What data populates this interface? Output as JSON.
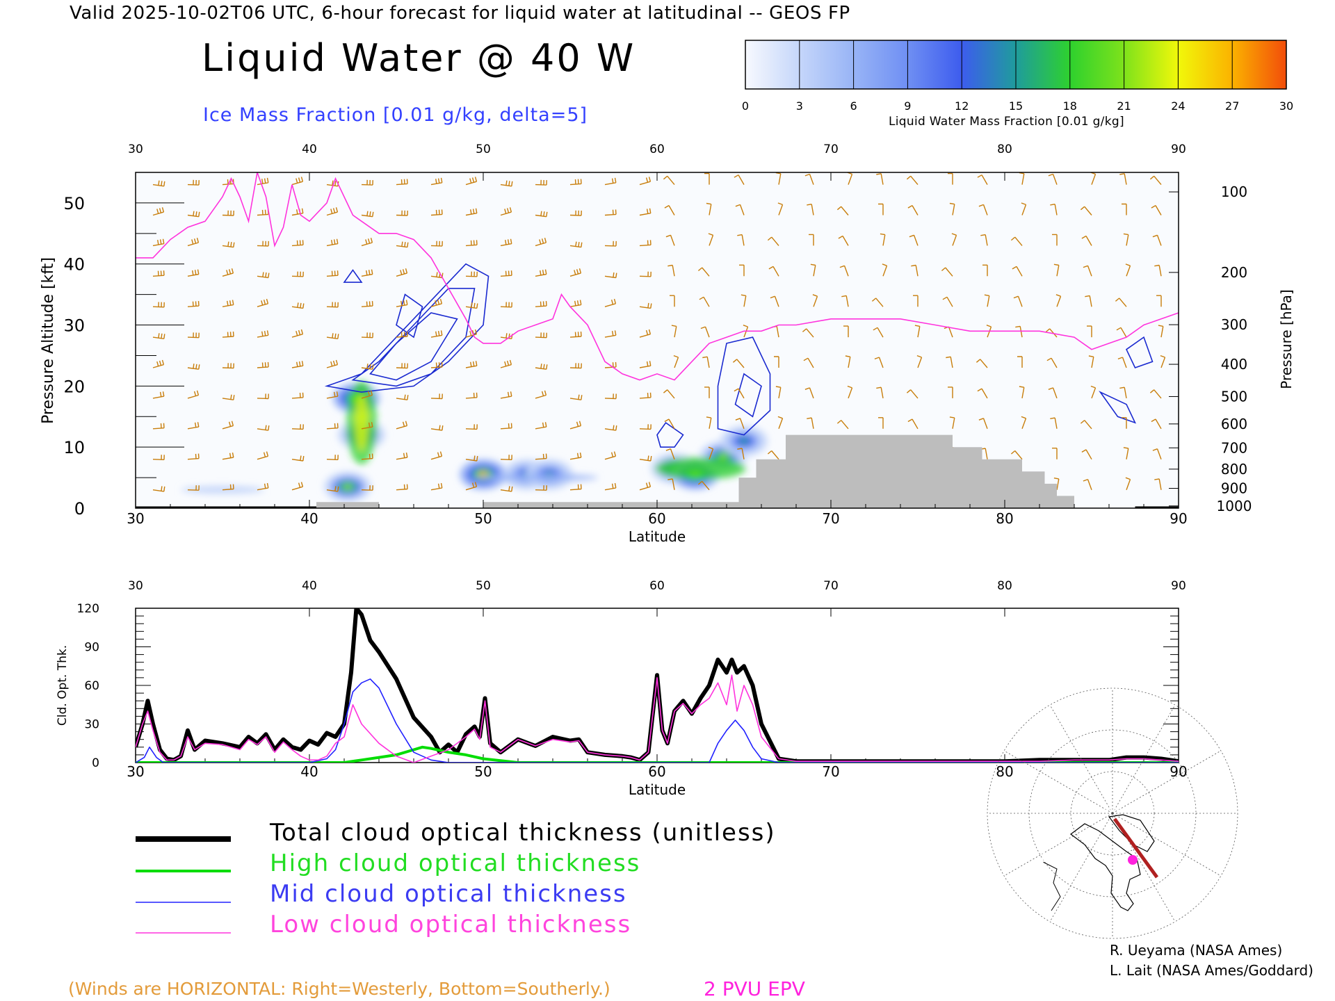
{
  "header": {
    "valid_line": "Valid 2025-10-02T06 UTC, 6-hour forecast for liquid water at latitudinal -- GEOS FP",
    "main_title": "Liquid Water @ 40 W",
    "contour_label": "Ice Mass Fraction [0.01 g/kg, delta=5]"
  },
  "colorbar": {
    "ticks": [
      "0",
      "3",
      "6",
      "9",
      "12",
      "15",
      "18",
      "21",
      "24",
      "27",
      "30"
    ],
    "label": "Liquid Water Mass Fraction [0.01 g/kg]",
    "colors": [
      "#f7f9fe",
      "#c5d6fa",
      "#98b4f6",
      "#6f8ff3",
      "#3d5cee",
      "#1f9c9c",
      "#2ed12e",
      "#7ee21b",
      "#f1f80a",
      "#fbb200",
      "#f24d0a"
    ]
  },
  "top_panel": {
    "ylabel_left": "Pressure Altitude [kft]",
    "ylabel_right": "Pressure [hPa]",
    "xlabel": "Latitude",
    "xticks": [
      "30",
      "40",
      "50",
      "60",
      "70",
      "80",
      "90"
    ],
    "yticks_left": [
      "0",
      "10",
      "20",
      "30",
      "40",
      "50"
    ],
    "yticks_right": [
      "100",
      "200",
      "300",
      "400",
      "500",
      "600",
      "700",
      "800",
      "900",
      "1000"
    ]
  },
  "bottom_panel": {
    "ylabel": "Cld. Opt. Thk.",
    "xlabel": "Latitude",
    "xticks": [
      "30",
      "40",
      "50",
      "60",
      "70",
      "80",
      "90"
    ],
    "yticks": [
      "0",
      "30",
      "60",
      "90",
      "120"
    ]
  },
  "legend": {
    "total": "Total cloud optical thickness (unitless)",
    "high": "High cloud optical thickness",
    "mid": "Mid cloud optical thickness",
    "low": "Low cloud optical thickness"
  },
  "footer": {
    "winds_note": "(Winds are HORIZONTAL: Right=Westerly, Bottom=Southerly.)",
    "epv_label": "2 PVU EPV",
    "credit1": "R. Ueyama (NASA Ames)",
    "credit2": "L. Lait (NASA Ames/Goddard)"
  },
  "colors": {
    "total": "#000000",
    "high": "#00dd00",
    "mid": "#2020ff",
    "low": "#ff33dd",
    "epv": "#ff33dd",
    "ice": "#1a2ad0",
    "wind": "#c87d0a",
    "terrain": "#bdbdbd",
    "notes": "#e39b3a"
  },
  "chart_data": [
    {
      "type": "heatmap",
      "title": "Liquid Water @ 40 W",
      "xlabel": "Latitude",
      "ylabel": "Pressure Altitude [kft]",
      "xlim": [
        30,
        90
      ],
      "ylim": [
        0,
        55
      ],
      "colorbar_range": [
        0,
        30
      ],
      "liquid_water_features": [
        {
          "lat": 42.7,
          "alt": 18,
          "peak": 24
        },
        {
          "lat": 43.0,
          "alt": 12,
          "peak": 18
        },
        {
          "lat": 42.2,
          "alt": 3.5,
          "peak": 22
        },
        {
          "lat": 50.0,
          "alt": 5.5,
          "peak": 27
        },
        {
          "lat": 52.5,
          "alt": 5.5,
          "peak": 16
        },
        {
          "lat": 53.8,
          "alt": 5.5,
          "peak": 15
        },
        {
          "lat": 61.0,
          "alt": 6.5,
          "peak": 18
        },
        {
          "lat": 62.2,
          "alt": 5.5,
          "peak": 24
        },
        {
          "lat": 63.8,
          "alt": 8.5,
          "peak": 20
        },
        {
          "lat": 65.0,
          "alt": 11,
          "peak": 15
        }
      ],
      "epv_2pvu": {
        "lat": [
          30,
          31,
          32,
          33,
          34,
          35,
          35.5,
          36,
          36.5,
          37,
          37.5,
          38,
          38.5,
          39,
          39.5,
          40,
          41,
          41.5,
          42,
          42.5,
          43,
          44,
          45,
          46,
          47,
          48,
          49,
          49.5,
          50,
          51,
          52,
          53,
          54,
          54.5,
          55,
          56,
          57,
          58,
          59,
          60,
          61,
          62,
          63,
          64,
          65,
          66,
          67,
          68,
          70,
          72,
          74,
          76,
          78,
          80,
          82,
          84,
          85,
          86,
          87,
          88,
          89,
          90
        ],
        "alt": [
          41,
          41,
          44,
          46,
          47,
          51,
          54,
          51,
          47,
          55,
          51,
          43,
          46,
          53,
          48,
          47,
          50,
          54,
          51,
          48,
          47,
          45,
          45,
          44,
          41,
          36,
          31,
          28,
          27,
          27,
          29,
          30,
          31,
          35,
          33,
          30,
          24,
          22,
          21,
          22,
          21,
          24,
          27,
          28,
          29,
          29,
          30,
          30,
          31,
          31,
          31,
          30,
          29,
          29,
          29,
          28,
          26,
          27,
          28,
          30,
          31,
          32
        ]
      },
      "terrain": {
        "lat": [
          30,
          40.4,
          40.4,
          44,
          44,
          50,
          50,
          64.7,
          64.7,
          65.7,
          65.7,
          67.4,
          67.4,
          77,
          77,
          78.7,
          78.7,
          81,
          81,
          82.3,
          82.3,
          83.0,
          83.0,
          84.0,
          84.0,
          90
        ],
        "alt": [
          0,
          0,
          1,
          1,
          0,
          0,
          1,
          1,
          5,
          5,
          8,
          8,
          12,
          12,
          10,
          10,
          8,
          8,
          6,
          6,
          4,
          4,
          2,
          2,
          0,
          0
        ]
      }
    },
    {
      "type": "line",
      "xlabel": "Latitude",
      "ylabel": "Cld. Opt. Thk.",
      "xlim": [
        30,
        90
      ],
      "ylim": [
        0,
        120
      ],
      "series": [
        {
          "name": "Total cloud optical thickness (unitless)",
          "x": [
            30,
            30.4,
            30.7,
            31.0,
            31.4,
            31.8,
            32.2,
            32.6,
            33.0,
            33.4,
            34,
            35,
            36,
            36.5,
            37,
            37.5,
            38,
            38.5,
            39,
            39.5,
            40,
            40.5,
            41,
            41.5,
            42,
            42.4,
            42.7,
            43.0,
            43.5,
            44,
            45,
            46,
            47,
            47.5,
            48,
            48.5,
            49,
            49.5,
            49.8,
            50.1,
            50.4,
            51,
            52,
            53,
            54,
            55,
            55.5,
            56,
            57,
            58,
            58.5,
            59,
            59.5,
            60,
            60.3,
            60.6,
            61,
            61.5,
            62,
            62.5,
            63,
            63.5,
            64,
            64.3,
            64.6,
            65,
            65.5,
            66,
            67,
            68,
            70,
            72,
            74,
            76,
            78,
            80,
            82,
            84,
            86,
            87,
            88,
            89,
            90
          ],
          "y": [
            12,
            30,
            48,
            30,
            10,
            3,
            2,
            5,
            25,
            10,
            17,
            15,
            12,
            20,
            15,
            22,
            10,
            18,
            12,
            10,
            17,
            14,
            23,
            20,
            30,
            70,
            120,
            115,
            95,
            86,
            65,
            35,
            20,
            8,
            14,
            8,
            22,
            28,
            20,
            50,
            15,
            8,
            18,
            13,
            20,
            17,
            18,
            8,
            6,
            5,
            4,
            2,
            8,
            68,
            25,
            15,
            40,
            48,
            38,
            50,
            60,
            80,
            70,
            80,
            70,
            75,
            60,
            30,
            3,
            1,
            1,
            1,
            1,
            1,
            1,
            1,
            2,
            2,
            2,
            4,
            4,
            3,
            1
          ]
        },
        {
          "name": "High cloud optical thickness",
          "x": [
            30,
            40,
            42,
            43,
            44,
            45,
            46,
            46.5,
            47,
            48,
            49,
            50,
            52,
            60,
            70,
            80,
            90
          ],
          "y": [
            0,
            0,
            0,
            2,
            4,
            6,
            10,
            12,
            11,
            8,
            6,
            3,
            0,
            0,
            0,
            0,
            0
          ]
        },
        {
          "name": "Mid cloud optical thickness",
          "x": [
            30,
            30.5,
            30.8,
            31.2,
            31.6,
            32,
            40,
            41,
            41.5,
            42,
            42.5,
            43,
            43.5,
            44,
            45,
            46,
            47,
            48,
            50,
            60,
            63,
            63.5,
            64,
            64.5,
            65,
            65.5,
            66,
            67,
            70,
            80,
            90
          ],
          "y": [
            0,
            4,
            12,
            4,
            0,
            0,
            0,
            3,
            10,
            30,
            55,
            62,
            65,
            58,
            30,
            8,
            2,
            0,
            0,
            0,
            0,
            15,
            25,
            33,
            25,
            12,
            3,
            0,
            0,
            0,
            0
          ]
        },
        {
          "name": "Low cloud optical thickness",
          "x": [
            30,
            30.4,
            30.7,
            31.0,
            31.4,
            31.8,
            32.2,
            32.6,
            33.0,
            33.4,
            34,
            35,
            36,
            36.5,
            37,
            37.5,
            38,
            38.5,
            39,
            39.5,
            40,
            40.5,
            41,
            41.5,
            42,
            42.5,
            43,
            44,
            45,
            46,
            48,
            49,
            49.5,
            49.8,
            50.1,
            50.4,
            51,
            52,
            53,
            54,
            55,
            55.5,
            56,
            57,
            58,
            58.5,
            59,
            59.5,
            60,
            60.3,
            60.6,
            61,
            61.5,
            62,
            62.5,
            63,
            63.5,
            64,
            64.3,
            64.6,
            65,
            65.5,
            66,
            67,
            68,
            70,
            72,
            74,
            76,
            78,
            80,
            82,
            84,
            86,
            87,
            88,
            89,
            90
          ],
          "y": [
            12,
            30,
            40,
            25,
            8,
            2,
            2,
            5,
            20,
            10,
            15,
            14,
            10,
            18,
            14,
            20,
            8,
            16,
            10,
            5,
            2,
            2,
            5,
            15,
            20,
            45,
            30,
            15,
            5,
            0,
            10,
            20,
            26,
            18,
            48,
            12,
            8,
            18,
            13,
            18,
            16,
            17,
            8,
            6,
            5,
            4,
            2,
            8,
            66,
            25,
            15,
            40,
            46,
            38,
            45,
            50,
            62,
            45,
            68,
            40,
            60,
            45,
            20,
            3,
            1,
            1,
            1,
            1,
            1,
            1,
            1,
            1,
            2,
            2,
            3,
            3,
            2,
            1
          ]
        }
      ]
    }
  ]
}
